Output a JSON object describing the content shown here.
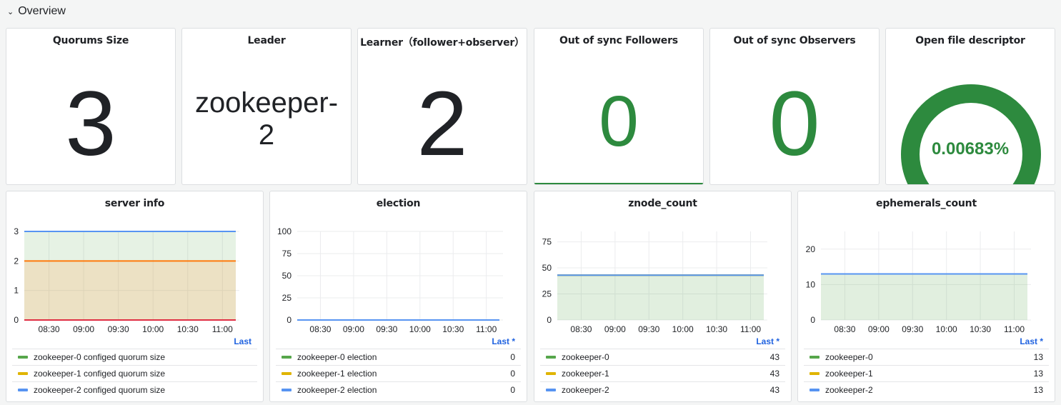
{
  "row": {
    "title": "Overview",
    "chevron_icon": "chevron-down-icon"
  },
  "stats": [
    {
      "title": "Quorums Size",
      "value": "3"
    },
    {
      "title": "Leader",
      "value_line1": "zookeeper-",
      "value_line2": "2"
    },
    {
      "title": "Learner（follower+observer）",
      "value": "2"
    },
    {
      "title": "Out of sync Followers",
      "value": "0",
      "color": "#2d8a3e"
    },
    {
      "title": "Out of sync Observers",
      "value": "0",
      "color": "#2d8a3e"
    },
    {
      "title": "Open file descriptor",
      "value": "0.00683%",
      "gauge_fraction": 1.0,
      "color": "#2d8a3e"
    }
  ],
  "colors": {
    "green": "#56a64b",
    "yellow": "#e0b400",
    "blue": "#5794f2",
    "red": "#e02f44",
    "orange": "#ff780a",
    "link": "#1f62e0"
  },
  "charts": [
    {
      "title": "server info",
      "legend_header": "Last",
      "chart_data": {
        "type": "area",
        "x": [
          "08:30",
          "09:00",
          "09:30",
          "10:00",
          "10:30",
          "11:00"
        ],
        "ylim": [
          0,
          3
        ],
        "yticks": [
          "0",
          "1",
          "2",
          "3"
        ],
        "lines": [
          {
            "value": 3,
            "color": "#5794f2"
          },
          {
            "value": 2,
            "color": "#ff780a"
          },
          {
            "value": 0,
            "color": "#e02f44"
          }
        ]
      },
      "legend": [
        {
          "name": "zookeeper-0 configed quorum size",
          "color": "#56a64b",
          "value": ""
        },
        {
          "name": "zookeeper-1 configed quorum size",
          "color": "#e0b400",
          "value": ""
        },
        {
          "name": "zookeeper-2 configed quorum size",
          "color": "#5794f2",
          "value": ""
        }
      ]
    },
    {
      "title": "election",
      "legend_header": "Last *",
      "chart_data": {
        "type": "line",
        "x": [
          "08:30",
          "09:00",
          "09:30",
          "10:00",
          "10:30",
          "11:00"
        ],
        "ylim": [
          0,
          100
        ],
        "yticks": [
          "0",
          "25",
          "50",
          "75",
          "100"
        ],
        "series": [
          {
            "name": "zookeeper-0 election",
            "value": 0
          },
          {
            "name": "zookeeper-1 election",
            "value": 0
          },
          {
            "name": "zookeeper-2 election",
            "value": 0
          }
        ]
      },
      "legend": [
        {
          "name": "zookeeper-0 election",
          "color": "#56a64b",
          "value": "0"
        },
        {
          "name": "zookeeper-1 election",
          "color": "#e0b400",
          "value": "0"
        },
        {
          "name": "zookeeper-2 election",
          "color": "#5794f2",
          "value": "0"
        }
      ]
    },
    {
      "title": "znode_count",
      "legend_header": "Last *",
      "chart_data": {
        "type": "area",
        "x": [
          "08:30",
          "09:00",
          "09:30",
          "10:00",
          "10:30",
          "11:00"
        ],
        "ylim": [
          0,
          85
        ],
        "yticks": [
          "0",
          "25",
          "50",
          "75"
        ],
        "series": [
          {
            "name": "zookeeper-0",
            "value": 43
          },
          {
            "name": "zookeeper-1",
            "value": 43
          },
          {
            "name": "zookeeper-2",
            "value": 43
          }
        ]
      },
      "legend": [
        {
          "name": "zookeeper-0",
          "color": "#56a64b",
          "value": "43"
        },
        {
          "name": "zookeeper-1",
          "color": "#e0b400",
          "value": "43"
        },
        {
          "name": "zookeeper-2",
          "color": "#5794f2",
          "value": "43"
        }
      ]
    },
    {
      "title": "ephemerals_count",
      "legend_header": "Last *",
      "chart_data": {
        "type": "area",
        "x": [
          "08:30",
          "09:00",
          "09:30",
          "10:00",
          "10:30",
          "11:00"
        ],
        "ylim": [
          0,
          25
        ],
        "yticks": [
          "0",
          "10",
          "20"
        ],
        "series": [
          {
            "name": "zookeeper-0",
            "value": 13
          },
          {
            "name": "zookeeper-1",
            "value": 13
          },
          {
            "name": "zookeeper-2",
            "value": 13
          }
        ]
      },
      "legend": [
        {
          "name": "zookeeper-0",
          "color": "#56a64b",
          "value": "13"
        },
        {
          "name": "zookeeper-1",
          "color": "#e0b400",
          "value": "13"
        },
        {
          "name": "zookeeper-2",
          "color": "#5794f2",
          "value": "13"
        }
      ]
    }
  ]
}
